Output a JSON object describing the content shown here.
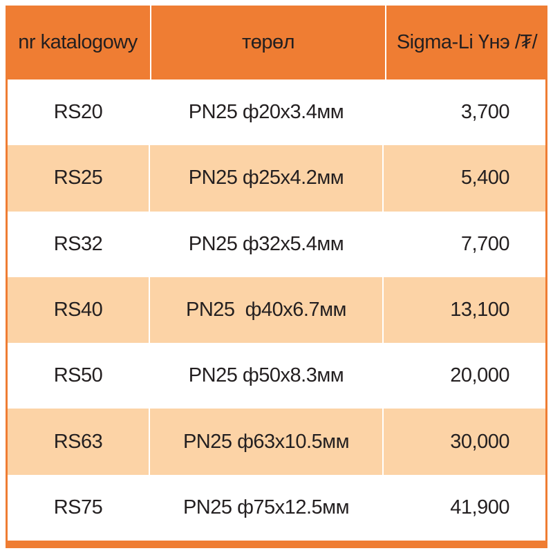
{
  "table": {
    "columns": {
      "catalog_number": "nr katalogowy",
      "type": "төрөл",
      "price": "Sigma-Li Үнэ /₮/"
    },
    "rows": [
      {
        "code": "RS20",
        "type": "PN25 ф20x3.4мм",
        "price": "3,700"
      },
      {
        "code": "RS25",
        "type": "PN25 ф25x4.2мм",
        "price": "5,400"
      },
      {
        "code": "RS32",
        "type": "PN25 ф32x5.4мм",
        "price": "7,700"
      },
      {
        "code": "RS40",
        "type": "PN25  ф40x6.7мм",
        "price": "13,100"
      },
      {
        "code": "RS50",
        "type": "PN25 ф50x8.3мм",
        "price": "20,000"
      },
      {
        "code": "RS63",
        "type": "PN25 ф63x10.5мм",
        "price": "30,000"
      },
      {
        "code": "RS75",
        "type": "PN25 ф75x12.5мм",
        "price": "41,900"
      }
    ],
    "colors": {
      "header_bg": "#ef7d33",
      "row_bg": "#ffffff",
      "row_alt_bg": "#fcd3a6",
      "border": "#ef7d33",
      "text": "#231f20"
    }
  }
}
